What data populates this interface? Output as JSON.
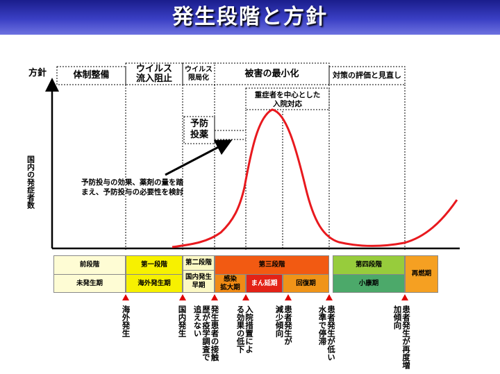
{
  "title": "発生段階と方針",
  "policy_label": "方針",
  "y_axis_label": "国内の発症者数",
  "policy_headers": {
    "p1": "体制整備",
    "p2": "ウイルス\n流入阻止",
    "p3": "ウイルス\n限局化",
    "p4": "被害の最小化",
    "p5": "対策の評価と見直し"
  },
  "boxes": {
    "severe": "重症者を中心とした\n入院対応",
    "prevent": "予防\n投薬"
  },
  "annotation": "予防投与の効果、薬剤の量を踏\nまえ、予防投与の必要性を検討",
  "stages": {
    "pre_top": "前段階",
    "pre_bottom": "未発生期",
    "s1_top": "第一段階",
    "s1_bottom": "海外発生期",
    "s2_top": "第二段階",
    "s2_bottom": "国内発生\n早期",
    "s3_top": "第三段階",
    "s3_a": "感染\n拡大期",
    "s3_b": "まん延期",
    "s3_c": "回復期",
    "s4_top": "第四段階",
    "s4_bottom": "小康期",
    "recurrence": "再燃期"
  },
  "events": [
    "海外発生",
    "国内発生",
    "発生患者の接触\n歴が疫学調査で\n追えない",
    "入院措置によ\nる効果の低下",
    "患者発生が\n減少傾向",
    "患者発生が低い\n水準で停滞",
    "患者発生が再度増\n加傾向"
  ],
  "colors": {
    "header": "#2a2fb0",
    "curve": "#e8191e",
    "marker": "#e00000",
    "pre": "#fefcd4",
    "stage1": "#f7f100",
    "stage2": "#fbf8c4",
    "stage3": "#f25a12",
    "stage3_spread": "#f08a15",
    "stage3_peak": "#e32216",
    "stage3_recovery": "#f09418",
    "stage4_top": "#97cc3c",
    "stage4_bottom": "#4ca96a",
    "recurrence": "#f5a022"
  }
}
